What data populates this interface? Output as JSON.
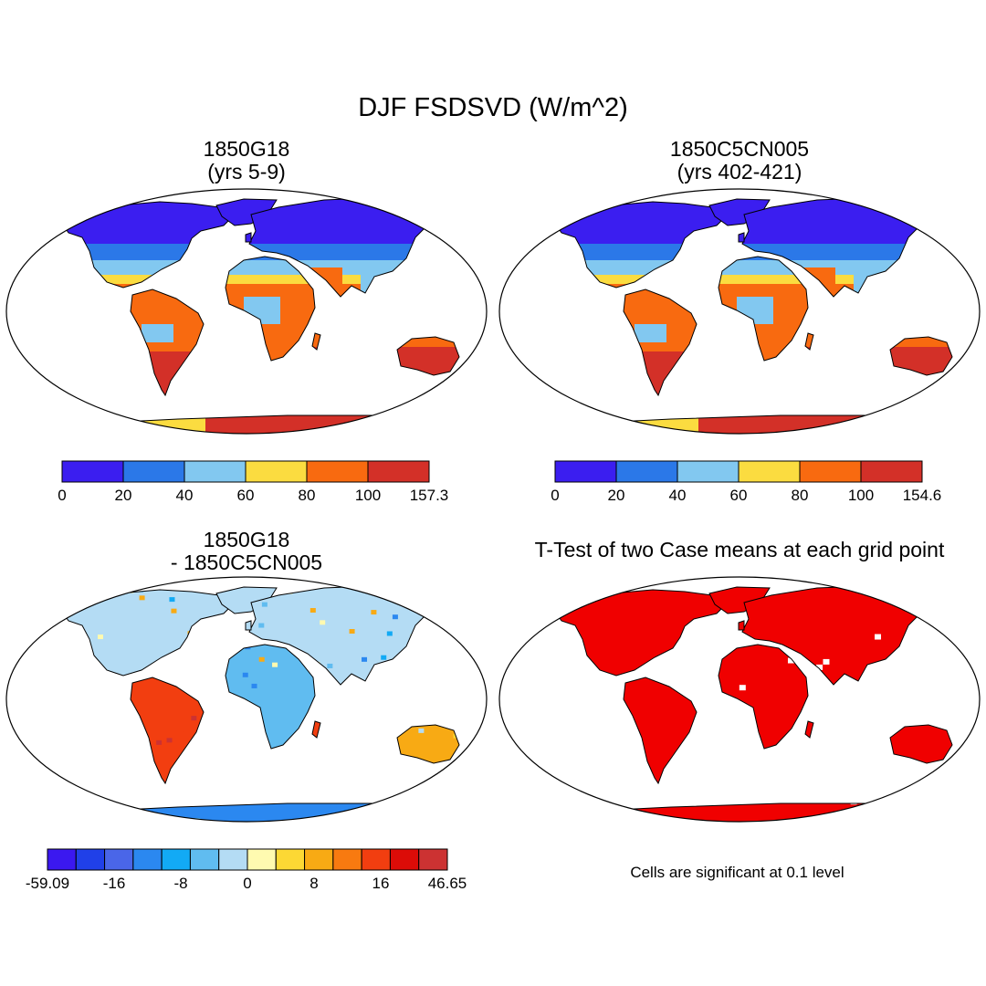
{
  "title": "DJF FSDSVD (W/m^2)",
  "colors": {
    "abs_scale": [
      "#3b1ef0",
      "#2b78e8",
      "#82c8f0",
      "#fbdc40",
      "#f86a10",
      "#d33028"
    ],
    "diff_scale": [
      "#3b18f0",
      "#2040e8",
      "#4a66e8",
      "#2b88f0",
      "#12aaf5",
      "#60bcf0",
      "#b4dcf4",
      "#fffab0",
      "#fcd834",
      "#f8aa14",
      "#f87a10",
      "#f23e10",
      "#dc0c08",
      "#cc3232"
    ],
    "significant": "#f00000",
    "land_outline": "#000000"
  },
  "panels": [
    {
      "id": "p1",
      "title_line1": "1850G18",
      "title_line2": "(yrs 5-9)",
      "colorbar": {
        "labels": [
          "0",
          "20",
          "40",
          "60",
          "80",
          "100",
          "157.3"
        ],
        "levels": [
          0,
          20,
          40,
          60,
          80,
          100
        ],
        "max": 157.3
      }
    },
    {
      "id": "p2",
      "title_line1": "1850C5CN005",
      "title_line2": "(yrs 402-421)",
      "colorbar": {
        "labels": [
          "0",
          "20",
          "40",
          "60",
          "80",
          "100",
          "154.6"
        ],
        "levels": [
          0,
          20,
          40,
          60,
          80,
          100
        ],
        "max": 154.6
      }
    },
    {
      "id": "p3",
      "title_line1": "1850G18",
      "title_line2": "- 1850C5CN005",
      "colorbar": {
        "labels": [
          "-59.09",
          "-16",
          "-8",
          "0",
          "8",
          "16",
          "46.65"
        ],
        "min": -59.09,
        "max": 46.65
      }
    },
    {
      "id": "p4",
      "title_line1": "T-Test of two Case means at each grid point",
      "note": "Cells are significant at 0.1 level"
    }
  ]
}
